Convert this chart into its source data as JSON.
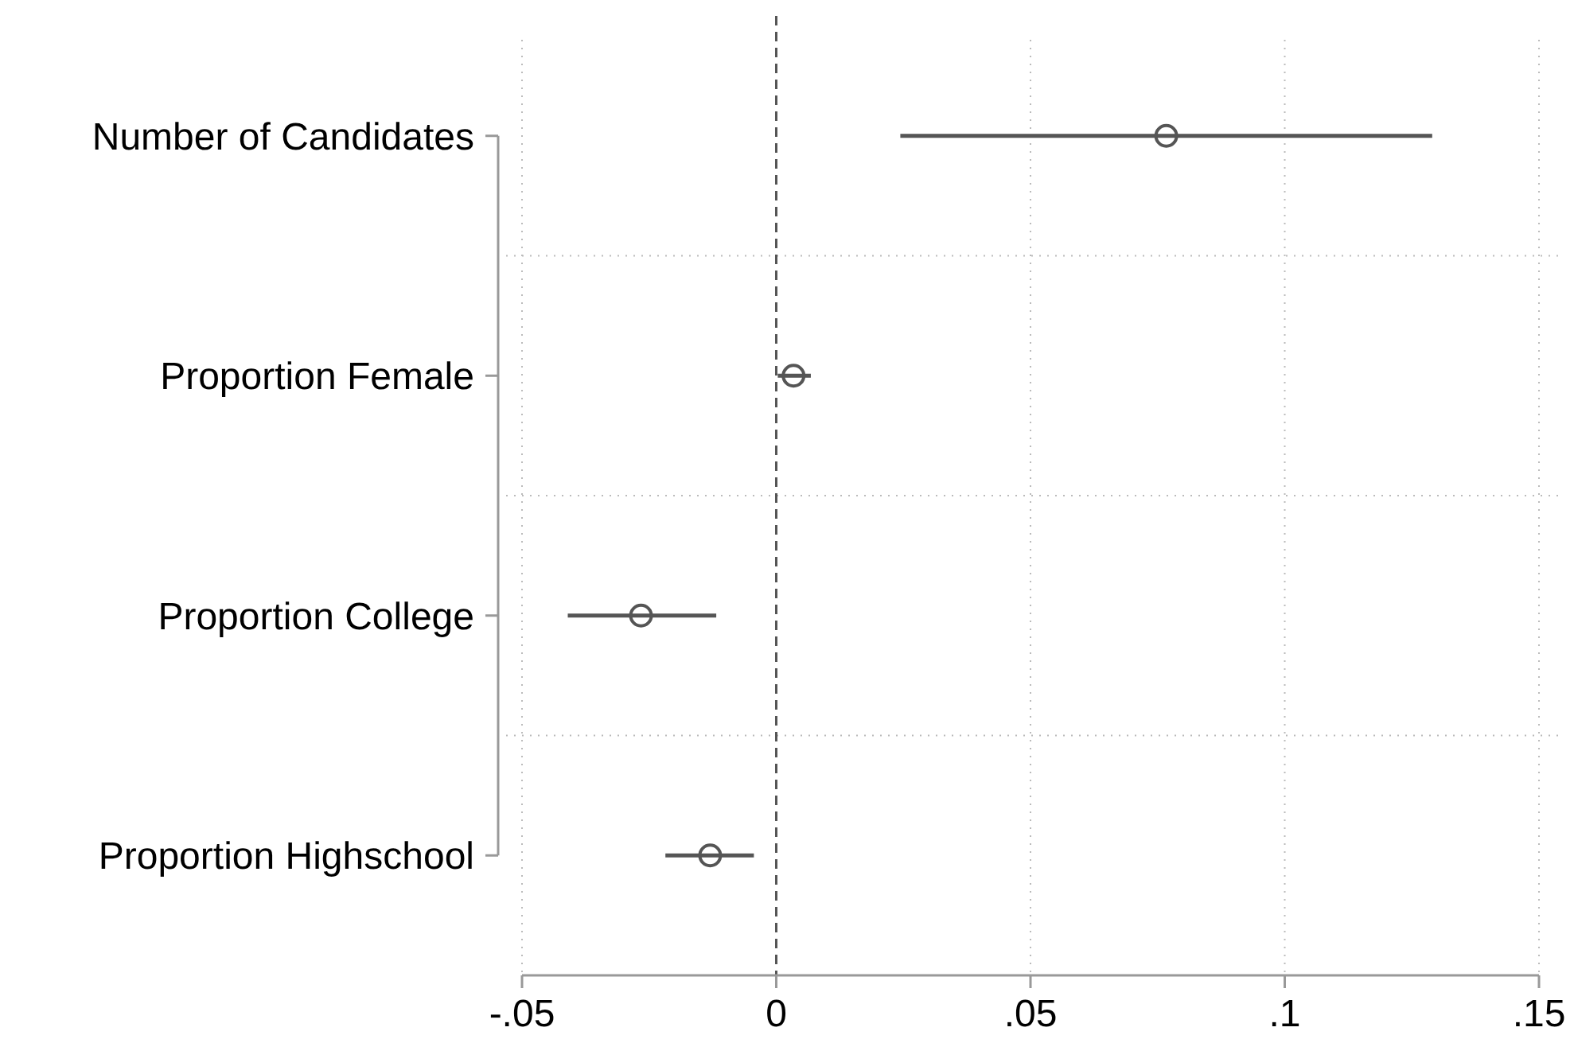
{
  "chart_data": {
    "type": "scatter",
    "orientation": "horizontal",
    "categories": [
      "Number of Candidates",
      "Proportion Female",
      "Proportion College",
      "Proportion Highschool"
    ],
    "values": [
      0.0767,
      0.0034,
      -0.0266,
      -0.013
    ],
    "errors": [
      [
        0.0244,
        0.129
      ],
      [
        0.0003,
        0.0068
      ],
      [
        -0.041,
        -0.0118
      ],
      [
        -0.0218,
        -0.0044
      ]
    ],
    "color": "#555555",
    "marker": "circle",
    "xlim": [
      -0.05,
      0.15
    ],
    "xticks": [
      {
        "value": -0.05,
        "label": "-.05"
      },
      0,
      {
        "value": 0.05,
        "label": ".05"
      },
      {
        "value": 0.1,
        "label": ".1"
      },
      {
        "value": 0.15,
        "label": ".15"
      }
    ],
    "ref_lines": [
      {
        "axis": "x",
        "value": 0,
        "color": "#555555",
        "line_style": "dashed"
      }
    ],
    "grid": true
  }
}
